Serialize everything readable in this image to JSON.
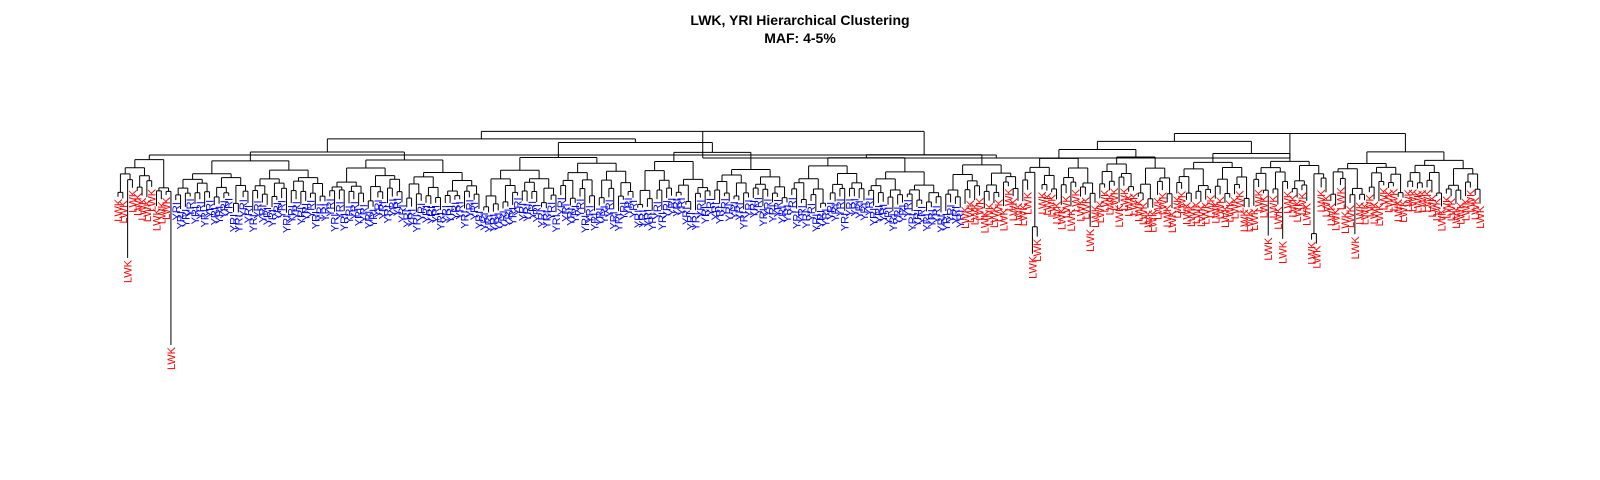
{
  "title_line1": "LWK, YRI Hierarchical Clustering",
  "title_line2": "MAF: 4-5%",
  "populations": {
    "LWK": {
      "label": "LWK",
      "color": "#ff0000"
    },
    "YRI": {
      "label": "YRI",
      "color": "#0000ff"
    }
  },
  "chart_data": {
    "type": "dendrogram",
    "title": "LWK, YRI Hierarchical Clustering",
    "subtitle": "MAF: 4-5%",
    "leaf_order": [
      "LWK",
      "LWK",
      "LWK",
      "LWK",
      "LWK",
      "LWK",
      "LWK",
      "LWK",
      "LWK",
      "LWK",
      "LWK",
      "LWK",
      "YRI",
      "YRI",
      "YRI",
      "YRI",
      "YRI",
      "YRI",
      "YRI",
      "YRI",
      "YRI",
      "YRI",
      "YRI",
      "YRI",
      "YRI",
      "YRI",
      "YRI",
      "YRI",
      "YRI",
      "YRI",
      "YRI",
      "YRI",
      "YRI",
      "YRI",
      "YRI",
      "YRI",
      "YRI",
      "YRI",
      "YRI",
      "YRI",
      "YRI",
      "YRI",
      "YRI",
      "YRI",
      "YRI",
      "YRI",
      "YRI",
      "YRI",
      "YRI",
      "YRI",
      "YRI",
      "YRI",
      "YRI",
      "YRI",
      "YRI",
      "YRI",
      "YRI",
      "YRI",
      "YRI",
      "YRI",
      "YRI",
      "YRI",
      "YRI",
      "YRI",
      "YRI",
      "YRI",
      "YRI",
      "YRI",
      "YRI",
      "YRI",
      "YRI",
      "YRI",
      "YRI",
      "YRI",
      "YRI",
      "YRI",
      "YRI",
      "YRI",
      "YRI",
      "YRI",
      "YRI",
      "YRI",
      "YRI",
      "YRI",
      "YRI",
      "YRI",
      "YRI",
      "YRI",
      "YRI",
      "YRI",
      "YRI",
      "YRI",
      "YRI",
      "YRI",
      "YRI",
      "YRI",
      "YRI",
      "YRI",
      "YRI",
      "YRI",
      "YRI",
      "YRI",
      "YRI",
      "YRI",
      "YRI",
      "YRI",
      "YRI",
      "YRI",
      "YRI",
      "YRI",
      "YRI",
      "YRI",
      "YRI",
      "YRI",
      "YRI",
      "YRI",
      "YRI",
      "YRI",
      "YRI",
      "YRI",
      "YRI",
      "YRI",
      "YRI",
      "YRI",
      "YRI",
      "YRI",
      "YRI",
      "YRI",
      "YRI",
      "YRI",
      "YRI",
      "YRI",
      "YRI",
      "YRI",
      "YRI",
      "YRI",
      "YRI",
      "YRI",
      "YRI",
      "YRI",
      "YRI",
      "YRI",
      "YRI",
      "YRI",
      "YRI",
      "YRI",
      "YRI",
      "YRI",
      "YRI",
      "YRI",
      "YRI",
      "YRI",
      "YRI",
      "YRI",
      "YRI",
      "YRI",
      "YRI",
      "YRI",
      "YRI",
      "YRI",
      "YRI",
      "YRI",
      "YRI",
      "YRI",
      "YRI",
      "YRI",
      "YRI",
      "YRI",
      "YRI",
      "YRI",
      "YRI",
      "YRI",
      "YRI",
      "YRI",
      "YRI",
      "YRI",
      "LWK",
      "LWK",
      "LWK",
      "LWK",
      "LWK",
      "LWK",
      "LWK",
      "LWK",
      "LWK",
      "LWK",
      "LWK",
      "LWK",
      "LWK",
      "LWK",
      "LWK",
      "LWK",
      "LWK",
      "LWK",
      "LWK",
      "LWK",
      "LWK",
      "LWK",
      "LWK",
      "LWK",
      "LWK",
      "LWK",
      "LWK",
      "LWK",
      "LWK",
      "LWK",
      "LWK",
      "LWK",
      "LWK",
      "LWK",
      "LWK",
      "LWK",
      "LWK",
      "LWK",
      "LWK",
      "LWK",
      "LWK",
      "LWK",
      "LWK",
      "LWK",
      "LWK",
      "LWK",
      "LWK",
      "LWK",
      "LWK",
      "LWK",
      "LWK",
      "LWK",
      "LWK",
      "LWK",
      "LWK",
      "LWK",
      "LWK",
      "LWK",
      "LWK",
      "LWK",
      "LWK",
      "LWK",
      "LWK",
      "LWK",
      "LWK",
      "LWK",
      "LWK",
      "LWK",
      "LWK",
      "LWK",
      "LWK",
      "LWK",
      "LWK",
      "LWK",
      "LWK",
      "LWK",
      "LWK",
      "LWK",
      "LWK",
      "LWK",
      "LWK",
      "LWK",
      "LWK",
      "LWK",
      "LWK",
      "LWK",
      "LWK",
      "LWK",
      "LWK",
      "LWK",
      "LWK",
      "LWK",
      "LWK",
      "LWK",
      "LWK",
      "LWK",
      "LWK",
      "LWK",
      "LWK",
      "LWK",
      "LWK",
      "LWK",
      "LWK",
      "LWK",
      "LWK",
      "LWK",
      "LWK",
      "LWK"
    ]
  }
}
